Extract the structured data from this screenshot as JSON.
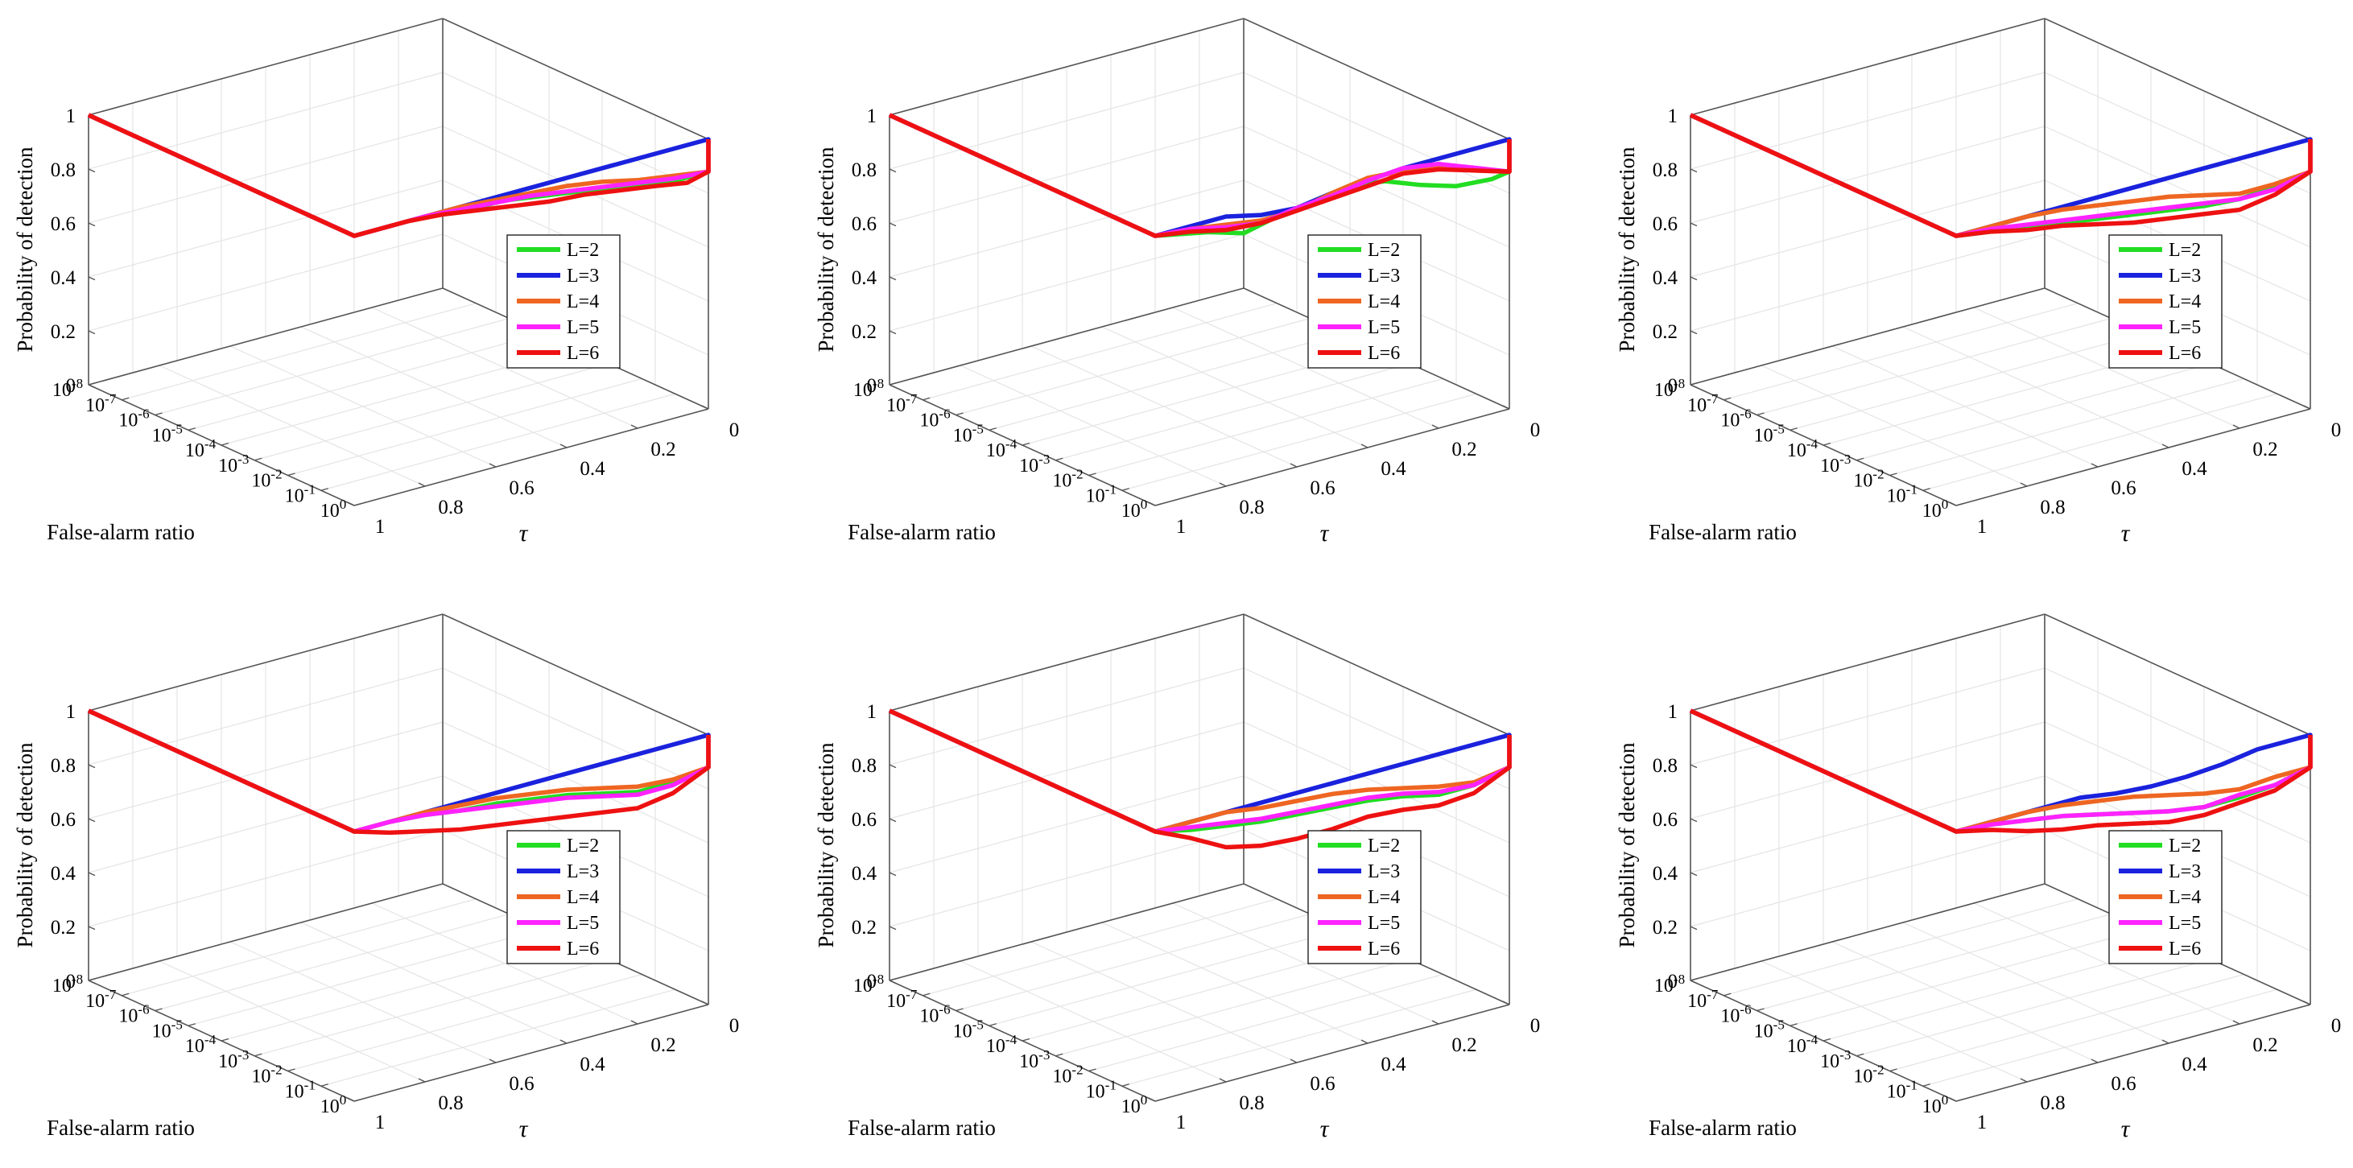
{
  "figure": {
    "background": "#ffffff",
    "grid_color": "#e4e4e4",
    "axis_color": "#555555"
  },
  "chart_data": [
    {
      "type": "line",
      "panel": "top-left",
      "zlabel": "Probability of detection",
      "xlabel": "False-alarm ratio",
      "ylabel": "τ",
      "zticks": [
        "0",
        "0.2",
        "0.4",
        "0.6",
        "0.8",
        "1"
      ],
      "zlim": [
        0,
        1
      ],
      "far_ticks": [
        "10",
        "10",
        "10",
        "10",
        "10",
        "10",
        "10",
        "10",
        "10"
      ],
      "far_exponents": [
        "-8",
        "-7",
        "-6",
        "-5",
        "-4",
        "-3",
        "-2",
        "-1",
        "0"
      ],
      "tau_ticks": [
        "0",
        "0.2",
        "0.4",
        "0.6",
        "0.8",
        "1"
      ],
      "legend": [
        "L=2",
        "L=3",
        "L=4",
        "L=5",
        "L=6"
      ],
      "legend_position": "center-right",
      "series": [
        {
          "name": "L=2",
          "color": "#22dd22",
          "tau": [
            0,
            0.08,
            0.18,
            0.28,
            0.38,
            0.48,
            0.58,
            0.7,
            0.8,
            0.9,
            1
          ],
          "values": [
            0.88,
            0.88,
            0.89,
            0.92,
            0.94,
            0.96,
            0.98,
            0.98,
            1,
            1,
            1
          ]
        },
        {
          "name": "L=3",
          "color": "#1a22dd",
          "tau": [
            0,
            1
          ],
          "values": [
            1,
            1
          ]
        },
        {
          "name": "L=4",
          "color": "#ee6622",
          "tau": [
            0,
            0.1,
            0.2,
            0.3,
            0.4,
            0.5,
            0.6,
            0.7,
            0.8,
            0.9,
            1
          ],
          "values": [
            0.88,
            0.9,
            0.92,
            0.95,
            0.97,
            0.98,
            0.99,
            1,
            1,
            1,
            1
          ]
        },
        {
          "name": "L=5",
          "color": "#ff22ff",
          "tau": [
            0,
            0.1,
            0.2,
            0.3,
            0.4,
            0.5,
            0.6,
            0.7,
            0.8,
            0.9,
            1
          ],
          "values": [
            0.88,
            0.89,
            0.91,
            0.93,
            0.95,
            0.97,
            0.98,
            0.99,
            1,
            1,
            1
          ]
        },
        {
          "name": "L=6",
          "color": "#ee1111",
          "tau": [
            0,
            0.06,
            0.15,
            0.25,
            0.35,
            0.45,
            0.55,
            0.65,
            0.75,
            0.85,
            1
          ],
          "values": [
            0.88,
            0.86,
            0.88,
            0.9,
            0.92,
            0.93,
            0.95,
            0.97,
            0.99,
            1,
            1
          ]
        }
      ]
    },
    {
      "type": "line",
      "panel": "top-middle",
      "zlabel": "Probability of detection",
      "xlabel": "False-alarm ratio",
      "ylabel": "τ",
      "zticks": [
        "0",
        "0.2",
        "0.4",
        "0.6",
        "0.8",
        "1"
      ],
      "zlim": [
        0,
        1
      ],
      "far_ticks": [
        "10",
        "10",
        "10",
        "10",
        "10",
        "10",
        "10",
        "10",
        "10"
      ],
      "far_exponents": [
        "-8",
        "-7",
        "-6",
        "-5",
        "-4",
        "-3",
        "-2",
        "-1",
        "0"
      ],
      "tau_ticks": [
        "0",
        "0.2",
        "0.4",
        "0.6",
        "0.8",
        "1"
      ],
      "legend": [
        "L=2",
        "L=3",
        "L=4",
        "L=5",
        "L=6"
      ],
      "legend_position": "center-right",
      "series": [
        {
          "name": "L=2",
          "color": "#22dd22",
          "tau": [
            0,
            0.05,
            0.15,
            0.25,
            0.35,
            0.45,
            0.55,
            0.65,
            0.75,
            0.85,
            1
          ],
          "values": [
            0.88,
            0.87,
            0.88,
            0.92,
            0.97,
            0.99,
            0.97,
            0.95,
            0.92,
            0.96,
            1
          ]
        },
        {
          "name": "L=3",
          "color": "#1a22dd",
          "tau": [
            0,
            0.2,
            0.3,
            0.4,
            0.5,
            0.6,
            0.7,
            0.8,
            1
          ],
          "values": [
            1,
            1,
            1,
            0.99,
            0.98,
            0.96,
            0.97,
            1,
            1
          ]
        },
        {
          "name": "L=4",
          "color": "#ee6622",
          "tau": [
            0,
            0.1,
            0.2,
            0.3,
            0.4,
            0.5,
            0.6,
            0.7,
            0.8,
            0.9,
            1
          ],
          "values": [
            0.88,
            0.92,
            0.97,
            0.99,
            1,
            0.98,
            0.95,
            0.95,
            0.97,
            0.99,
            1
          ]
        },
        {
          "name": "L=5",
          "color": "#ff22ff",
          "tau": [
            0,
            0.1,
            0.2,
            0.3,
            0.4,
            0.5,
            0.6,
            0.7,
            0.8,
            0.9,
            1
          ],
          "values": [
            0.88,
            0.93,
            0.98,
            1,
            0.99,
            0.97,
            0.96,
            0.94,
            0.96,
            0.99,
            1
          ]
        },
        {
          "name": "L=6",
          "color": "#ee1111",
          "tau": [
            0,
            0.1,
            0.2,
            0.3,
            0.4,
            0.5,
            0.6,
            0.7,
            0.8,
            0.9,
            1
          ],
          "values": [
            0.88,
            0.92,
            0.96,
            0.98,
            0.97,
            0.96,
            0.95,
            0.94,
            0.95,
            0.98,
            1
          ]
        }
      ]
    },
    {
      "type": "line",
      "panel": "top-right",
      "zlabel": "Probability of detection",
      "xlabel": "False-alarm ratio",
      "ylabel": "τ",
      "zticks": [
        "0",
        "0.2",
        "0.4",
        "0.6",
        "0.8",
        "1"
      ],
      "zlim": [
        0,
        1
      ],
      "far_ticks": [
        "10",
        "10",
        "10",
        "10",
        "10",
        "10",
        "10",
        "10",
        "10"
      ],
      "far_exponents": [
        "-8",
        "-7",
        "-6",
        "-5",
        "-4",
        "-3",
        "-2",
        "-1",
        "0"
      ],
      "tau_ticks": [
        "0",
        "0.2",
        "0.4",
        "0.6",
        "0.8",
        "1"
      ],
      "legend": [
        "L=2",
        "L=3",
        "L=4",
        "L=5",
        "L=6"
      ],
      "legend_position": "center-right",
      "series": [
        {
          "name": "L=2",
          "color": "#22dd22",
          "tau": [
            0,
            0.1,
            0.2,
            0.3,
            0.4,
            0.5,
            0.6,
            0.7,
            0.8,
            0.9,
            1
          ],
          "values": [
            0.88,
            0.86,
            0.85,
            0.86,
            0.88,
            0.9,
            0.92,
            0.94,
            0.96,
            0.98,
            1
          ]
        },
        {
          "name": "L=3",
          "color": "#1a22dd",
          "tau": [
            0,
            1
          ],
          "values": [
            1,
            1
          ]
        },
        {
          "name": "L=4",
          "color": "#ee6622",
          "tau": [
            0,
            0.1,
            0.2,
            0.3,
            0.4,
            0.5,
            0.6,
            0.7,
            0.8,
            0.9,
            1
          ],
          "values": [
            0.88,
            0.87,
            0.87,
            0.9,
            0.93,
            0.95,
            0.97,
            0.99,
            1,
            1,
            1
          ]
        },
        {
          "name": "L=5",
          "color": "#ff22ff",
          "tau": [
            0,
            0.1,
            0.2,
            0.3,
            0.4,
            0.5,
            0.6,
            0.7,
            0.8,
            0.9,
            1
          ],
          "values": [
            0.88,
            0.85,
            0.85,
            0.87,
            0.89,
            0.91,
            0.93,
            0.95,
            0.97,
            0.99,
            1
          ]
        },
        {
          "name": "L=6",
          "color": "#ee1111",
          "tau": [
            0,
            0.1,
            0.2,
            0.3,
            0.4,
            0.5,
            0.6,
            0.7,
            0.8,
            0.9,
            1
          ],
          "values": [
            0.88,
            0.83,
            0.81,
            0.83,
            0.85,
            0.87,
            0.9,
            0.93,
            0.95,
            0.98,
            1
          ]
        }
      ]
    },
    {
      "type": "line",
      "panel": "bottom-left",
      "zlabel": "Probability of detection",
      "xlabel": "False-alarm ratio",
      "ylabel": "τ",
      "zticks": [
        "0",
        "0.2",
        "0.4",
        "0.6",
        "0.8",
        "1"
      ],
      "zlim": [
        0,
        1
      ],
      "far_ticks": [
        "10",
        "10",
        "10",
        "10",
        "10",
        "10",
        "10",
        "10",
        "10"
      ],
      "far_exponents": [
        "-8",
        "-7",
        "-6",
        "-5",
        "-4",
        "-3",
        "-2",
        "-1",
        "0"
      ],
      "tau_ticks": [
        "0",
        "0.2",
        "0.4",
        "0.6",
        "0.8",
        "1"
      ],
      "legend": [
        "L=2",
        "L=3",
        "L=4",
        "L=5",
        "L=6"
      ],
      "legend_position": "center-right",
      "series": [
        {
          "name": "L=2",
          "color": "#22dd22",
          "tau": [
            0,
            0.1,
            0.2,
            0.3,
            0.4,
            0.5,
            0.6,
            0.7,
            0.8,
            0.9,
            1
          ],
          "values": [
            0.88,
            0.86,
            0.86,
            0.89,
            0.92,
            0.94,
            0.96,
            0.97,
            0.99,
            1,
            1
          ]
        },
        {
          "name": "L=3",
          "color": "#1a22dd",
          "tau": [
            0,
            1
          ],
          "values": [
            1,
            1
          ]
        },
        {
          "name": "L=4",
          "color": "#ee6622",
          "tau": [
            0,
            0.1,
            0.2,
            0.3,
            0.4,
            0.5,
            0.6,
            0.7,
            0.8,
            0.9,
            1
          ],
          "values": [
            0.88,
            0.87,
            0.88,
            0.91,
            0.94,
            0.96,
            0.98,
            0.99,
            1,
            1,
            1
          ]
        },
        {
          "name": "L=5",
          "color": "#ff22ff",
          "tau": [
            0,
            0.1,
            0.2,
            0.3,
            0.4,
            0.5,
            0.6,
            0.7,
            0.8,
            0.9,
            1
          ],
          "values": [
            0.88,
            0.85,
            0.85,
            0.88,
            0.91,
            0.93,
            0.95,
            0.97,
            0.99,
            1,
            1
          ]
        },
        {
          "name": "L=6",
          "color": "#ee1111",
          "tau": [
            0,
            0.1,
            0.2,
            0.3,
            0.4,
            0.5,
            0.6,
            0.7,
            0.8,
            0.9,
            1
          ],
          "values": [
            0.88,
            0.82,
            0.8,
            0.82,
            0.84,
            0.86,
            0.88,
            0.9,
            0.93,
            0.96,
            1
          ]
        }
      ]
    },
    {
      "type": "line",
      "panel": "bottom-middle",
      "zlabel": "Probability of detection",
      "xlabel": "False-alarm ratio",
      "ylabel": "τ",
      "zticks": [
        "0",
        "0.2",
        "0.4",
        "0.6",
        "0.8",
        "1"
      ],
      "zlim": [
        0,
        1
      ],
      "far_ticks": [
        "10",
        "10",
        "10",
        "10",
        "10",
        "10",
        "10",
        "10",
        "10"
      ],
      "far_exponents": [
        "-8",
        "-7",
        "-6",
        "-5",
        "-4",
        "-3",
        "-2",
        "-1",
        "0"
      ],
      "tau_ticks": [
        "0",
        "0.2",
        "0.4",
        "0.6",
        "0.8",
        "1"
      ],
      "legend": [
        "L=2",
        "L=3",
        "L=4",
        "L=5",
        "L=6"
      ],
      "legend_position": "center-right",
      "series": [
        {
          "name": "L=2",
          "color": "#22dd22",
          "tau": [
            0,
            0.1,
            0.2,
            0.3,
            0.4,
            0.5,
            0.6,
            0.7,
            0.8,
            0.9,
            1
          ],
          "values": [
            0.88,
            0.85,
            0.85,
            0.88,
            0.9,
            0.91,
            0.92,
            0.93,
            0.95,
            0.97,
            1
          ]
        },
        {
          "name": "L=3",
          "color": "#1a22dd",
          "tau": [
            0,
            1
          ],
          "values": [
            1,
            1
          ]
        },
        {
          "name": "L=4",
          "color": "#ee6622",
          "tau": [
            0,
            0.1,
            0.2,
            0.3,
            0.4,
            0.5,
            0.6,
            0.7,
            0.8,
            0.9,
            1
          ],
          "values": [
            0.88,
            0.86,
            0.88,
            0.91,
            0.94,
            0.96,
            0.97,
            0.98,
            1,
            1,
            1
          ]
        },
        {
          "name": "L=5",
          "color": "#ff22ff",
          "tau": [
            0,
            0.1,
            0.2,
            0.3,
            0.4,
            0.5,
            0.6,
            0.7,
            0.8,
            0.9,
            1
          ],
          "values": [
            0.88,
            0.85,
            0.86,
            0.89,
            0.91,
            0.92,
            0.93,
            0.94,
            0.96,
            0.98,
            1
          ]
        },
        {
          "name": "L=6",
          "color": "#ee1111",
          "tau": [
            0,
            0.1,
            0.2,
            0.3,
            0.4,
            0.5,
            0.6,
            0.7,
            0.8,
            0.9,
            1
          ],
          "values": [
            0.88,
            0.82,
            0.81,
            0.83,
            0.84,
            0.83,
            0.83,
            0.84,
            0.87,
            0.94,
            1
          ]
        }
      ]
    },
    {
      "type": "line",
      "panel": "bottom-right",
      "zlabel": "Probability of detection",
      "xlabel": "False-alarm ratio",
      "ylabel": "τ",
      "zticks": [
        "0",
        "0.2",
        "0.4",
        "0.6",
        "0.8",
        "1"
      ],
      "zlim": [
        0,
        1
      ],
      "far_ticks": [
        "10",
        "10",
        "10",
        "10",
        "10",
        "10",
        "10",
        "10",
        "10"
      ],
      "far_exponents": [
        "-8",
        "-7",
        "-6",
        "-5",
        "-4",
        "-3",
        "-2",
        "-1",
        "0"
      ],
      "tau_ticks": [
        "0",
        "0.2",
        "0.4",
        "0.6",
        "0.8",
        "1"
      ],
      "legend": [
        "L=2",
        "L=3",
        "L=4",
        "L=5",
        "L=6"
      ],
      "legend_position": "center-right",
      "series": [
        {
          "name": "L=2",
          "color": "#22dd22",
          "tau": [
            0,
            0.1,
            0.2,
            0.3,
            0.4,
            0.5,
            0.6,
            0.7,
            0.8,
            0.9,
            1
          ],
          "values": [
            0.88,
            0.85,
            0.84,
            0.84,
            0.86,
            0.89,
            0.92,
            0.95,
            0.97,
            0.99,
            1
          ]
        },
        {
          "name": "L=3",
          "color": "#1a22dd",
          "tau": [
            0,
            0.15,
            0.25,
            0.35,
            0.45,
            0.55,
            0.65,
            1
          ],
          "values": [
            1,
            1,
            0.98,
            0.97,
            0.97,
            0.98,
            1,
            1
          ]
        },
        {
          "name": "L=4",
          "color": "#ee6622",
          "tau": [
            0,
            0.1,
            0.2,
            0.3,
            0.4,
            0.5,
            0.6,
            0.7,
            0.8,
            0.9,
            1
          ],
          "values": [
            0.88,
            0.88,
            0.87,
            0.89,
            0.92,
            0.95,
            0.97,
            0.99,
            1,
            1,
            1
          ]
        },
        {
          "name": "L=5",
          "color": "#ff22ff",
          "tau": [
            0,
            0.1,
            0.2,
            0.3,
            0.4,
            0.5,
            0.6,
            0.7,
            0.8,
            0.9,
            1
          ],
          "values": [
            0.88,
            0.85,
            0.85,
            0.84,
            0.86,
            0.89,
            0.92,
            0.95,
            0.97,
            0.99,
            1
          ]
        },
        {
          "name": "L=6",
          "color": "#ee1111",
          "tau": [
            0,
            0.1,
            0.2,
            0.3,
            0.4,
            0.5,
            0.6,
            0.7,
            0.8,
            0.9,
            1
          ],
          "values": [
            0.88,
            0.83,
            0.82,
            0.81,
            0.82,
            0.85,
            0.88,
            0.9,
            0.93,
            0.97,
            1
          ]
        }
      ]
    }
  ]
}
